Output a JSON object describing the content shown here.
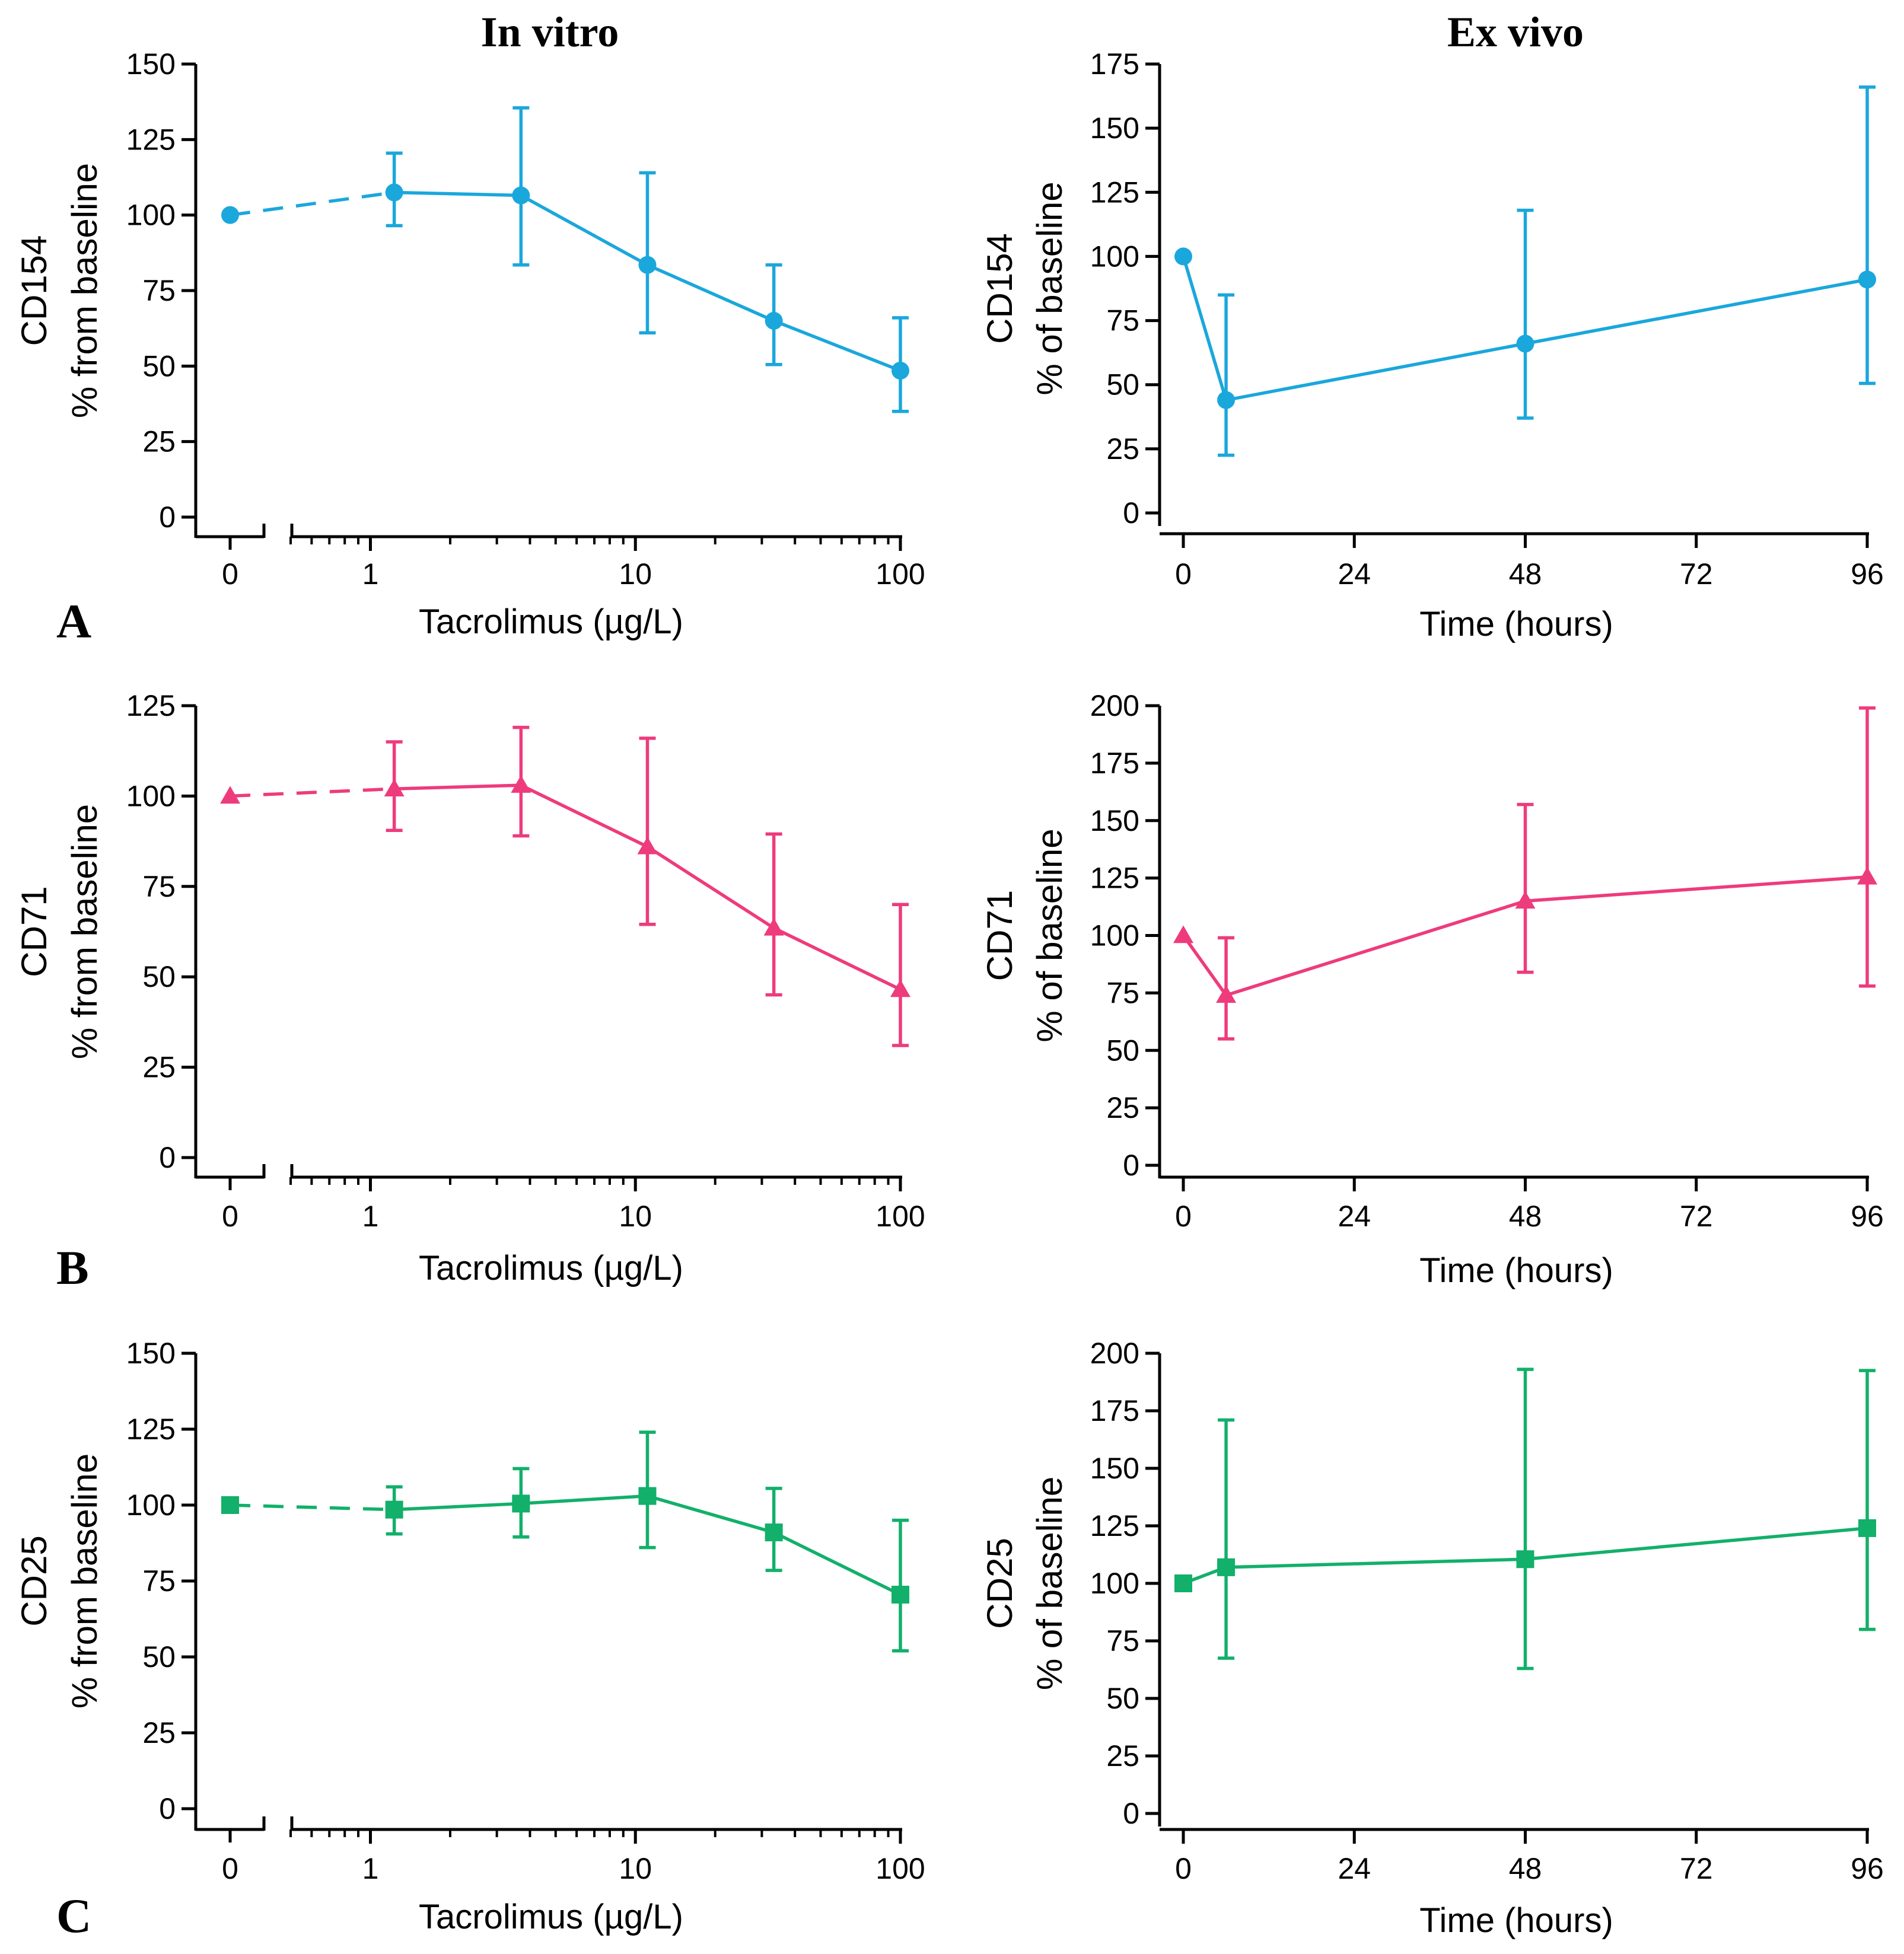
{
  "column_titles": {
    "left": "In vitro",
    "right": "Ex vivo"
  },
  "chart_data": [
    {
      "id": "A-invitro",
      "panel_label": "A",
      "type": "line",
      "xscale": "broken-log",
      "title": "",
      "ylabel_1": "CD154",
      "ylabel_2": "% from baseline",
      "xlabel": "Tacrolimus (µg/L)",
      "color": "#1aa7dc",
      "marker": "circle",
      "ylim": [
        0,
        150
      ],
      "yticks": [
        "0",
        "25",
        "50",
        "75",
        "100",
        "125",
        "150"
      ],
      "xticks": [
        {
          "value": 0,
          "label": "0"
        },
        {
          "value": 1,
          "label": "1"
        },
        {
          "value": 10,
          "label": "10"
        },
        {
          "value": 100,
          "label": "100"
        }
      ],
      "points": [
        {
          "x": 0,
          "y": 100,
          "lo": 100,
          "hi": 100
        },
        {
          "x": 1.23,
          "y": 107.5,
          "lo": 96.5,
          "hi": 120.5
        },
        {
          "x": 3.7,
          "y": 106.5,
          "lo": 83.5,
          "hi": 135.5
        },
        {
          "x": 11.1,
          "y": 83.5,
          "lo": 61,
          "hi": 114
        },
        {
          "x": 33.3,
          "y": 65,
          "lo": 50.5,
          "hi": 83.5
        },
        {
          "x": 100,
          "y": 48.5,
          "lo": 35,
          "hi": 66
        }
      ]
    },
    {
      "id": "A-exvivo",
      "panel_label": "",
      "type": "line",
      "xscale": "linear",
      "title": "",
      "ylabel_1": "CD154",
      "ylabel_2": "% of baseline",
      "xlabel": "Time (hours)",
      "color": "#1aa7dc",
      "marker": "circle",
      "ylim": [
        0,
        175
      ],
      "yticks": [
        "0",
        "25",
        "50",
        "75",
        "100",
        "125",
        "150",
        "175"
      ],
      "xlim": [
        0,
        96
      ],
      "xticks": [
        {
          "value": 0,
          "label": "0"
        },
        {
          "value": 24,
          "label": "24"
        },
        {
          "value": 48,
          "label": "48"
        },
        {
          "value": 72,
          "label": "72"
        },
        {
          "value": 96,
          "label": "96"
        }
      ],
      "points": [
        {
          "x": 0,
          "y": 100,
          "lo": 100,
          "hi": 100
        },
        {
          "x": 6,
          "y": 44,
          "lo": 22.5,
          "hi": 85
        },
        {
          "x": 48,
          "y": 66,
          "lo": 37,
          "hi": 118
        },
        {
          "x": 96,
          "y": 91,
          "lo": 50.5,
          "hi": 166
        }
      ]
    },
    {
      "id": "B-invitro",
      "panel_label": "B",
      "type": "line",
      "xscale": "broken-log",
      "title": "",
      "ylabel_1": "CD71",
      "ylabel_2": "% from baseline",
      "xlabel": "Tacrolimus (µg/L)",
      "color": "#ee3b7c",
      "marker": "triangle",
      "ylim": [
        0,
        125
      ],
      "yticks": [
        "0",
        "25",
        "50",
        "75",
        "100",
        "125"
      ],
      "xticks": [
        {
          "value": 0,
          "label": "0"
        },
        {
          "value": 1,
          "label": "1"
        },
        {
          "value": 10,
          "label": "10"
        },
        {
          "value": 100,
          "label": "100"
        }
      ],
      "points": [
        {
          "x": 0,
          "y": 100,
          "lo": 100,
          "hi": 100
        },
        {
          "x": 1.23,
          "y": 102,
          "lo": 90.5,
          "hi": 115
        },
        {
          "x": 3.7,
          "y": 103,
          "lo": 89,
          "hi": 119
        },
        {
          "x": 11.1,
          "y": 86,
          "lo": 64.5,
          "hi": 116
        },
        {
          "x": 33.3,
          "y": 63.5,
          "lo": 45,
          "hi": 89.5
        },
        {
          "x": 100,
          "y": 46.5,
          "lo": 31,
          "hi": 70
        }
      ]
    },
    {
      "id": "B-exvivo",
      "panel_label": "",
      "type": "line",
      "xscale": "linear",
      "title": "",
      "ylabel_1": "CD71",
      "ylabel_2": "% of baseline",
      "xlabel": "Time (hours)",
      "color": "#ee3b7c",
      "marker": "triangle",
      "ylim": [
        0,
        200
      ],
      "yticks": [
        "0",
        "25",
        "50",
        "75",
        "100",
        "125",
        "150",
        "175",
        "200"
      ],
      "xlim": [
        0,
        96
      ],
      "xticks": [
        {
          "value": 0,
          "label": "0"
        },
        {
          "value": 24,
          "label": "24"
        },
        {
          "value": 48,
          "label": "48"
        },
        {
          "value": 72,
          "label": "72"
        },
        {
          "value": 96,
          "label": "96"
        }
      ],
      "points": [
        {
          "x": 0,
          "y": 100,
          "lo": 100,
          "hi": 100
        },
        {
          "x": 6,
          "y": 74,
          "lo": 55,
          "hi": 99
        },
        {
          "x": 48,
          "y": 115,
          "lo": 84,
          "hi": 157
        },
        {
          "x": 96,
          "y": 125.5,
          "lo": 78,
          "hi": 199
        }
      ]
    },
    {
      "id": "C-invitro",
      "panel_label": "C",
      "type": "line",
      "xscale": "broken-log",
      "title": "",
      "ylabel_1": "CD25",
      "ylabel_2": "% from baseline",
      "xlabel": "Tacrolimus (µg/L)",
      "color": "#12b06a",
      "marker": "square",
      "ylim": [
        0,
        150
      ],
      "yticks": [
        "0",
        "25",
        "50",
        "75",
        "100",
        "125",
        "150"
      ],
      "xticks": [
        {
          "value": 0,
          "label": "0"
        },
        {
          "value": 1,
          "label": "1"
        },
        {
          "value": 10,
          "label": "10"
        },
        {
          "value": 100,
          "label": "100"
        }
      ],
      "points": [
        {
          "x": 0,
          "y": 100,
          "lo": 100,
          "hi": 100
        },
        {
          "x": 1.23,
          "y": 98.5,
          "lo": 90.5,
          "hi": 106
        },
        {
          "x": 3.7,
          "y": 100.5,
          "lo": 89.5,
          "hi": 112
        },
        {
          "x": 11.1,
          "y": 103,
          "lo": 86,
          "hi": 124
        },
        {
          "x": 33.3,
          "y": 91,
          "lo": 78.5,
          "hi": 105.5
        },
        {
          "x": 100,
          "y": 70.5,
          "lo": 52,
          "hi": 95
        }
      ]
    },
    {
      "id": "C-exvivo",
      "panel_label": "",
      "type": "line",
      "xscale": "linear",
      "title": "",
      "ylabel_1": "CD25",
      "ylabel_2": "% of baseline",
      "xlabel": "Time (hours)",
      "color": "#12b06a",
      "marker": "square",
      "ylim": [
        0,
        200
      ],
      "yticks": [
        "0",
        "25",
        "50",
        "75",
        "100",
        "125",
        "150",
        "175",
        "200"
      ],
      "xlim": [
        0,
        96
      ],
      "xticks": [
        {
          "value": 0,
          "label": "0"
        },
        {
          "value": 24,
          "label": "24"
        },
        {
          "value": 48,
          "label": "48"
        },
        {
          "value": 72,
          "label": "72"
        },
        {
          "value": 96,
          "label": "96"
        }
      ],
      "points": [
        {
          "x": 0,
          "y": 100,
          "lo": 100,
          "hi": 100
        },
        {
          "x": 6,
          "y": 107,
          "lo": 67.5,
          "hi": 171
        },
        {
          "x": 48,
          "y": 110.5,
          "lo": 63,
          "hi": 193
        },
        {
          "x": 96,
          "y": 124,
          "lo": 80,
          "hi": 192.5
        }
      ]
    }
  ]
}
